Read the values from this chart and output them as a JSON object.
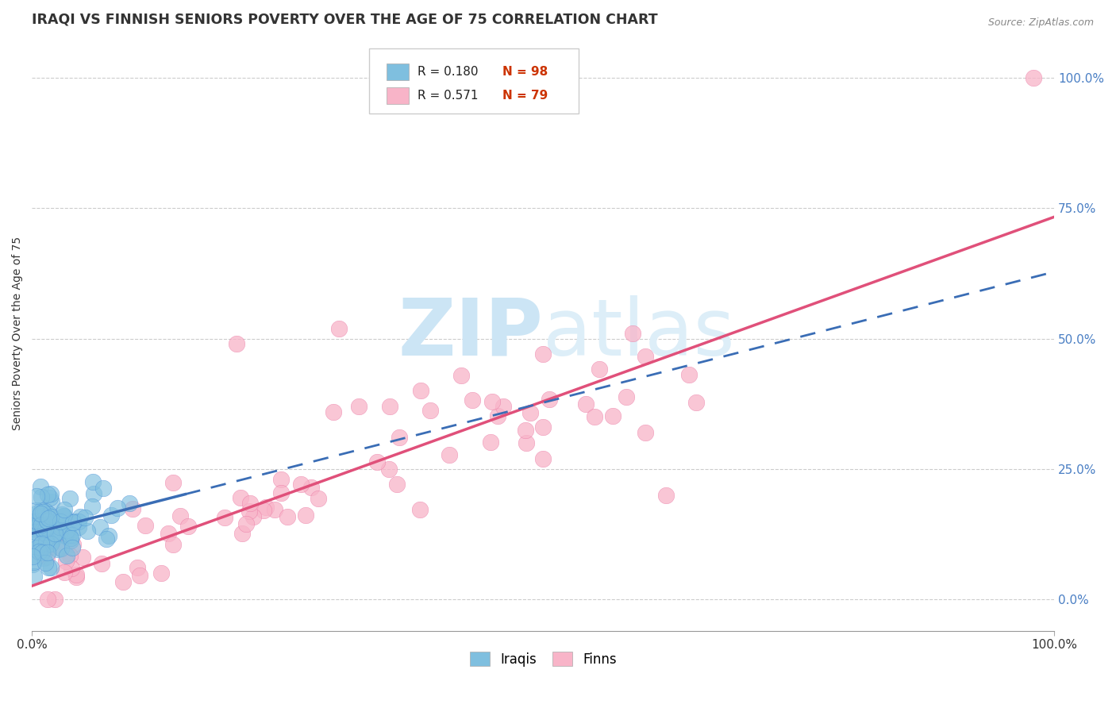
{
  "title": "IRAQI VS FINNISH SENIORS POVERTY OVER THE AGE OF 75 CORRELATION CHART",
  "source": "Source: ZipAtlas.com",
  "ylabel": "Seniors Poverty Over the Age of 75",
  "xlim": [
    0,
    1
  ],
  "ylim": [
    -0.06,
    1.08
  ],
  "y_tick_labels": [
    "0.0%",
    "25.0%",
    "50.0%",
    "75.0%",
    "100.0%"
  ],
  "y_tick_positions": [
    0,
    0.25,
    0.5,
    0.75,
    1.0
  ],
  "iraqi_R": 0.18,
  "iraqi_N": 98,
  "finn_R": 0.571,
  "finn_N": 79,
  "iraqi_color": "#7fbfdf",
  "iraqi_edge_color": "#4a90d9",
  "finn_color": "#f8b4c8",
  "finn_edge_color": "#e8689a",
  "iraqi_line_color": "#3a6db5",
  "finn_line_color": "#e0507a",
  "background_color": "#ffffff",
  "watermark_color": "#cce5f5",
  "grid_color": "#cccccc",
  "title_color": "#333333",
  "ylabel_color": "#333333",
  "ytick_color": "#4a7fc4",
  "xtick_color": "#333333",
  "source_color": "#888888"
}
